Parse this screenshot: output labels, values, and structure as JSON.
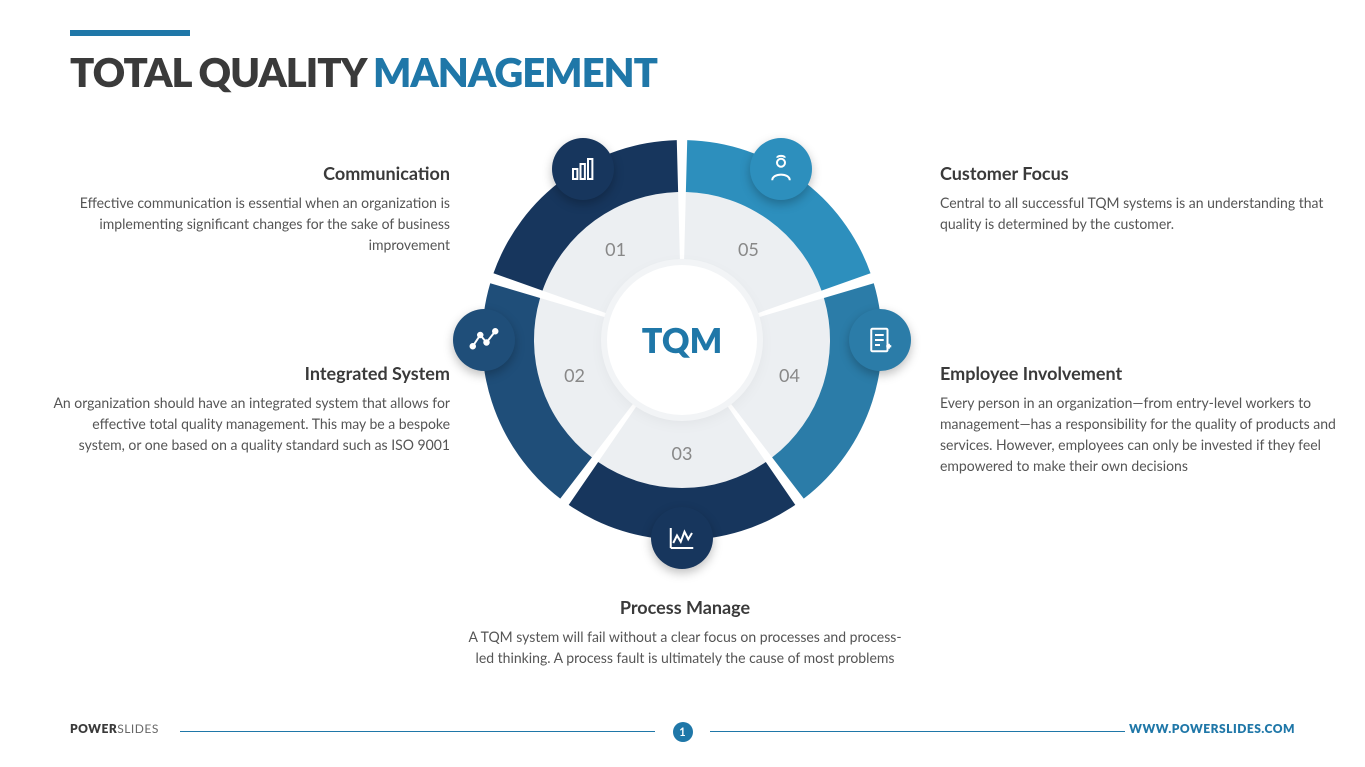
{
  "title": {
    "part1": "TOTAL QUALITY ",
    "part2": "MANAGEMENT"
  },
  "center_label": "TQM",
  "colors": {
    "accent": "#1f77a8",
    "dark_navy": "#17365d",
    "navy": "#1f4e79",
    "mid_navy": "#2b5d8c",
    "teal": "#1f77a8",
    "light_teal": "#2d8fbd",
    "gray_bg": "#eceff2",
    "text_dark": "#3a3a3a",
    "text_body": "#555555",
    "white": "#ffffff"
  },
  "diagram": {
    "type": "radial-segments",
    "segments": 5,
    "outer_radius": 200,
    "ring_outer_radius": 200,
    "ring_inner_radius": 148,
    "inner_bg_radius": 148,
    "gap_deg": 3,
    "start_angle_deg": -90,
    "segment_colors": [
      "#17365d",
      "#1f4e79",
      "#17365d",
      "#2b7ca8",
      "#2d8fbd"
    ],
    "inner_bg_color": "#eceff2",
    "numbers": [
      "01",
      "02",
      "03",
      "04",
      "05"
    ],
    "number_radius": 113,
    "icon_radius": 198,
    "icons": [
      "bar-chart",
      "line-nodes",
      "trend-chart",
      "document",
      "user"
    ]
  },
  "items": [
    {
      "num": "01",
      "title": "Communication",
      "body": "Effective communication is essential when an organization is implementing significant changes for the sake of business improvement"
    },
    {
      "num": "02",
      "title": "Integrated System",
      "body": "An organization should have an integrated system that allows for effective total quality management. This may be a bespoke system, or one based on a quality standard such as ISO 9001"
    },
    {
      "num": "03",
      "title": "Process Manage",
      "body": "A TQM system will fail without a clear focus on processes and process-led thinking. A process fault is ultimately the cause of most problems"
    },
    {
      "num": "04",
      "title": "Employee Involvement",
      "body": "Every person in an organization—from entry-level workers to management—has a responsibility for the quality of products and services. However, employees can only be invested if they feel empowered to make their own decisions"
    },
    {
      "num": "05",
      "title": "Customer Focus",
      "body": "Central to all successful TQM systems is an understanding that quality is determined by the customer."
    }
  ],
  "footer": {
    "brand_bold": "POWER",
    "brand_light": "SLIDES",
    "url": "WWW.POWERSLIDES.COM",
    "page": "1"
  }
}
